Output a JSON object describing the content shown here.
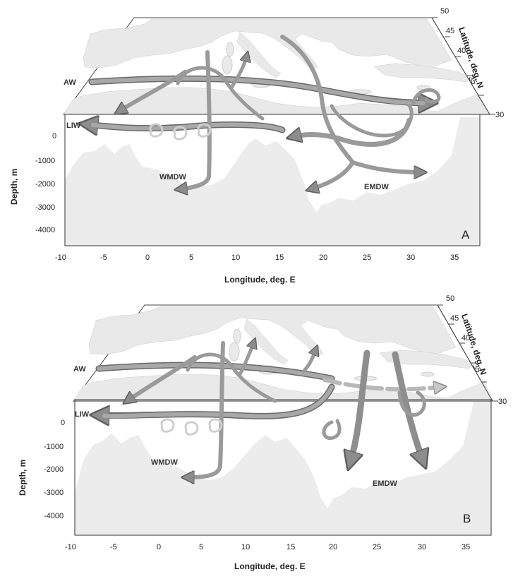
{
  "colors": {
    "land": "#e9e9e9",
    "frame": "#333333",
    "arrow_fill": "#9a9a9a",
    "arrow_edge": "#6a6a6a",
    "arrow_pale": "#d0d0d0",
    "text": "#222222"
  },
  "axes": {
    "longitude_ticks": [
      "-10",
      "-5",
      "0",
      "5",
      "10",
      "15",
      "20",
      "25",
      "30",
      "35"
    ],
    "depth_ticks": [
      "0",
      "-1000",
      "-2000",
      "-3000",
      "-4000"
    ],
    "latitude_ticks": [
      "30",
      "35",
      "40",
      "45",
      "50"
    ],
    "xlabel": "Longitude, deg. E",
    "ylabel": "Depth, m",
    "lat_label": "Latitude, deg. N"
  },
  "water_masses": {
    "aw": "AW",
    "liw": "LIW",
    "wmdw": "WMDW",
    "emdw": "EMDW"
  },
  "panels": [
    {
      "letter": "A"
    },
    {
      "letter": "B"
    }
  ]
}
